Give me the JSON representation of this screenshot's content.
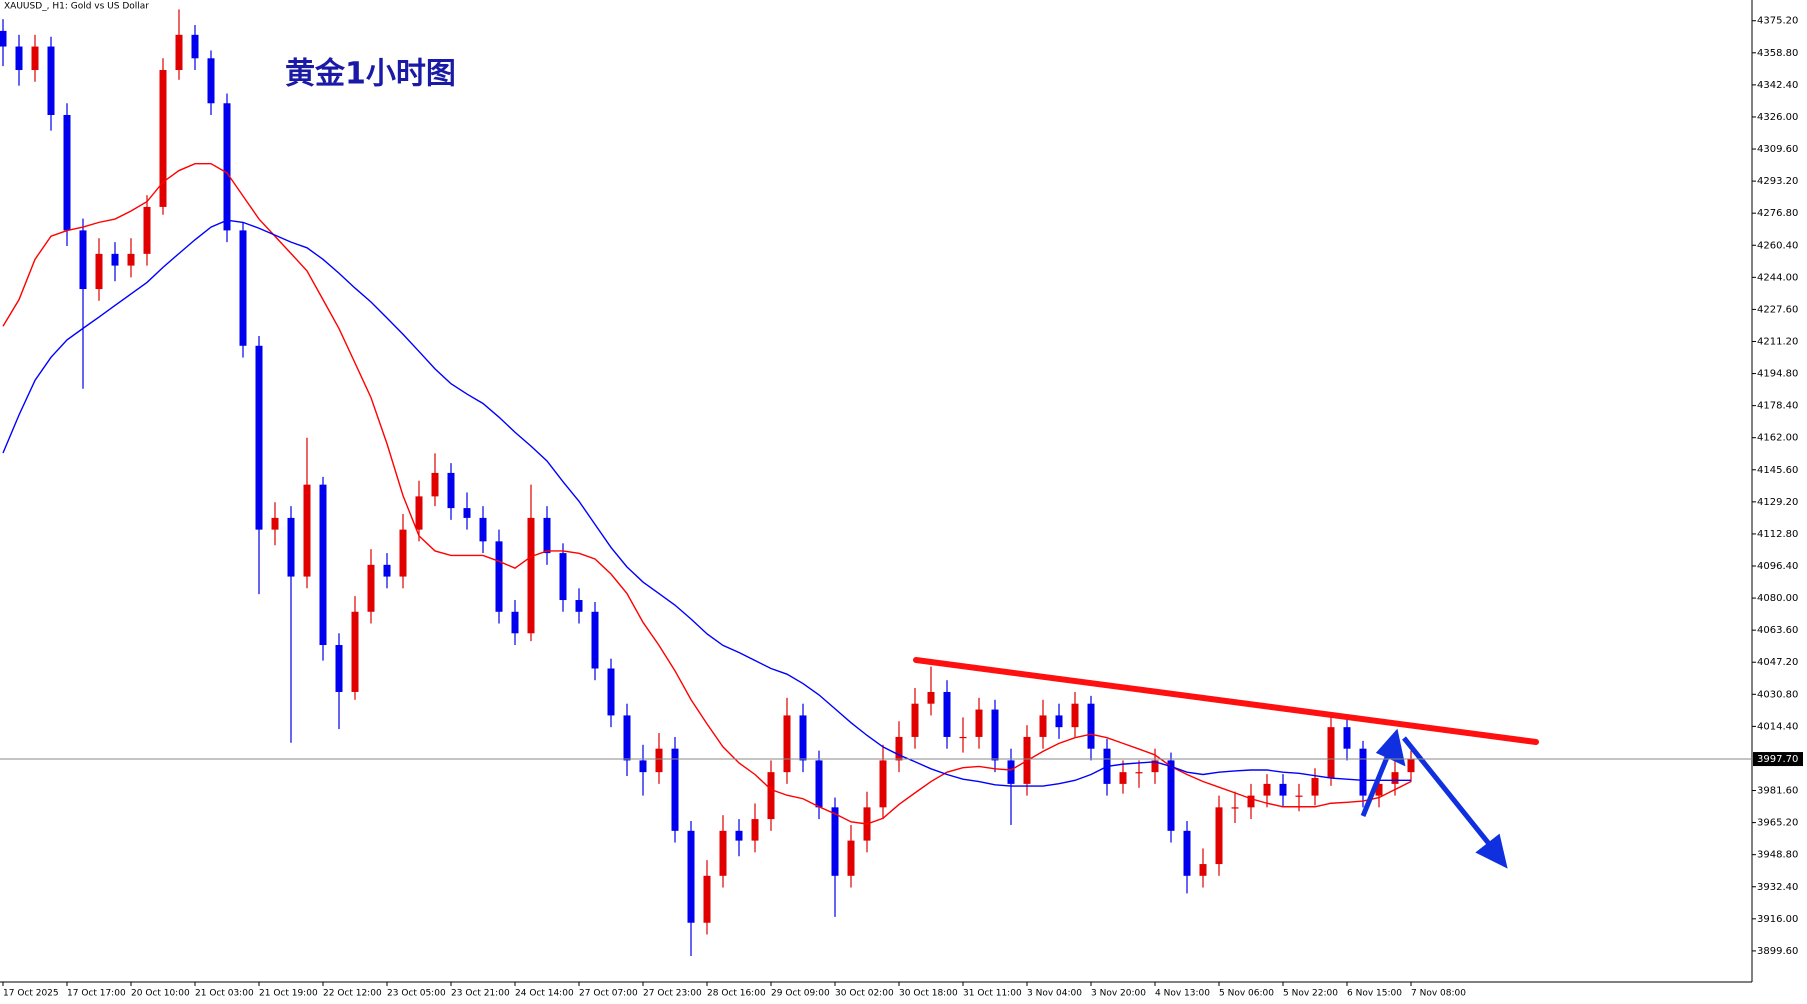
{
  "chart_data": {
    "type": "candlestick",
    "title": "XAUUSD_, H1:  Gold vs US Dollar",
    "annotation": "黄金1小时图",
    "categories": [
      "17 Oct 2025",
      null,
      null,
      null,
      "17 Oct 17:00",
      null,
      null,
      null,
      "20 Oct 10:00",
      null,
      null,
      null,
      "21 Oct 03:00",
      null,
      null,
      null,
      "21 Oct 19:00",
      null,
      null,
      null,
      "22 Oct 12:00",
      null,
      null,
      null,
      "23 Oct 05:00",
      null,
      null,
      null,
      "23 Oct 21:00",
      null,
      null,
      null,
      "24 Oct 14:00",
      null,
      null,
      null,
      "27 Oct 07:00",
      null,
      null,
      null,
      "27 Oct 23:00",
      null,
      null,
      null,
      "28 Oct 16:00",
      null,
      null,
      null,
      "29 Oct 09:00",
      null,
      null,
      null,
      "30 Oct 02:00",
      null,
      null,
      null,
      "30 Oct 18:00",
      null,
      null,
      null,
      "31 Oct 11:00",
      null,
      null,
      null,
      "3 Nov 04:00",
      null,
      null,
      null,
      "3 Nov 20:00",
      null,
      null,
      null,
      "4 Nov 13:00",
      null,
      null,
      null,
      "5 Nov 06:00",
      null,
      null,
      null,
      "5 Nov 22:00",
      null,
      null,
      null,
      "6 Nov 15:00",
      null,
      null,
      null,
      "7 Nov 08:00"
    ],
    "open": [
      4370,
      4362,
      4350,
      4362,
      4327,
      4268,
      4238,
      4256,
      4250,
      4256,
      4280,
      4350,
      4368,
      4356,
      4333,
      4268,
      4209,
      4115,
      4121,
      4091,
      4138,
      4056,
      4032,
      4073,
      4097,
      4091,
      4115,
      4132,
      4144,
      4126,
      4121,
      4109,
      4073,
      4062,
      4121,
      4103,
      4079,
      4073,
      4044,
      4020,
      3997,
      3991,
      4003,
      3961,
      3914,
      3938,
      3961,
      3956,
      3967,
      3991,
      4020,
      3997,
      3973,
      3938,
      3956,
      3973,
      3997,
      4009,
      4026,
      4032,
      4009,
      4009,
      4023,
      3997,
      3985,
      4009,
      4020,
      4014,
      4026,
      4003,
      3985,
      3991,
      3991,
      3997,
      3961,
      3938,
      3944,
      3973,
      3973,
      3979,
      3985,
      3979,
      3979,
      3988,
      4014,
      4003,
      3979,
      3985,
      3991
    ],
    "high": [
      4376,
      4368,
      4368,
      4367,
      4333,
      4274,
      4264,
      4262,
      4264,
      4286,
      4356,
      4381,
      4373,
      4360,
      4338,
      4272,
      4214,
      4129,
      4127,
      4162,
      4142,
      4062,
      4081,
      4105,
      4103,
      4123,
      4140,
      4154,
      4149,
      4134,
      4127,
      4115,
      4079,
      4138,
      4127,
      4108,
      4085,
      4078,
      4049,
      4026,
      4005,
      4011,
      4009,
      3966,
      3946,
      3969,
      3967,
      3975,
      3997,
      4029,
      4026,
      4002,
      3978,
      3964,
      3981,
      4005,
      4017,
      4034,
      4045,
      4038,
      4019,
      4029,
      4028,
      4003,
      4015,
      4028,
      4026,
      4032,
      4030,
      4008,
      3997,
      3997,
      4003,
      4001,
      3966,
      3952,
      3979,
      3981,
      3985,
      3990,
      3990,
      3985,
      3993,
      4020,
      4018,
      4007,
      3991,
      3997,
      4002
    ],
    "low": [
      4352,
      4342,
      4344,
      4319,
      4260,
      4187,
      4232,
      4242,
      4244,
      4250,
      4276,
      4345,
      4350,
      4327,
      4262,
      4203,
      4082,
      4107,
      4006,
      4085,
      4048,
      4013,
      4028,
      4067,
      4085,
      4085,
      4109,
      4127,
      4120,
      4115,
      4103,
      4067,
      4056,
      4058,
      4097,
      4073,
      4067,
      4038,
      4014,
      3989,
      3979,
      3985,
      3955,
      3897,
      3908,
      3932,
      3948,
      3950,
      3961,
      3985,
      3991,
      3967,
      3917,
      3932,
      3950,
      3967,
      3991,
      4003,
      4020,
      4003,
      4001,
      4003,
      3991,
      3964,
      3979,
      4003,
      4008,
      4009,
      3997,
      3979,
      3980,
      3983,
      3985,
      3955,
      3929,
      3932,
      3938,
      3965,
      3967,
      3973,
      3973,
      3971,
      3974,
      3984,
      3997,
      3973,
      3973,
      3979,
      3986
    ],
    "close": [
      4362,
      4350,
      4362,
      4327,
      4268,
      4238,
      4256,
      4250,
      4256,
      4280,
      4350,
      4368,
      4356,
      4333,
      4268,
      4209,
      4115,
      4121,
      4091,
      4138,
      4056,
      4032,
      4073,
      4097,
      4091,
      4115,
      4132,
      4144,
      4126,
      4121,
      4109,
      4073,
      4062,
      4121,
      4103,
      4079,
      4073,
      4044,
      4020,
      3997,
      3991,
      4003,
      3961,
      3914,
      3938,
      3961,
      3956,
      3967,
      3991,
      4020,
      3997,
      3973,
      3938,
      3956,
      3973,
      3997,
      4009,
      4026,
      4032,
      4009,
      4009,
      4023,
      3997,
      3985,
      4009,
      4020,
      4014,
      4026,
      4003,
      3985,
      3991,
      3991,
      3997,
      3961,
      3938,
      3944,
      3973,
      3973,
      3979,
      3985,
      3979,
      3979,
      3988,
      4014,
      4003,
      3979,
      3985,
      3991,
      3997.7
    ],
    "up_color": "#e00000",
    "down_color": "#0000ee",
    "overlays": [
      {
        "color": "#ff0000",
        "values": [
          4219.0,
          4232.6,
          4253.2,
          4265.0,
          4267.9,
          4269.7,
          4272.1,
          4273.8,
          4277.9,
          4282.7,
          4292.7,
          4298.6,
          4302.1,
          4302.1,
          4297.4,
          4285.6,
          4273.8,
          4265.0,
          4256.2,
          4247.3,
          4232.6,
          4217.8,
          4200.2,
          4182.5,
          4158.9,
          4132.4,
          4111.8,
          4104.1,
          4101.8,
          4101.8,
          4101.8,
          4098.8,
          4095.3,
          4101.2,
          4104.1,
          4104.1,
          4102.9,
          4100.0,
          4092.3,
          4082.3,
          4067.6,
          4055.8,
          4042.8,
          4028.1,
          4015.7,
          4003.9,
          3995.7,
          3989.8,
          3982.1,
          3979.2,
          3977.4,
          3973.3,
          3969.7,
          3965.6,
          3964.5,
          3967.4,
          3974.5,
          3980.4,
          3986.2,
          3991.0,
          3993.3,
          3993.9,
          3992.7,
          3992.1,
          3996.9,
          4001.6,
          4005.7,
          4008.6,
          4010.4,
          4008.6,
          4005.7,
          4002.8,
          3999.8,
          3993.9,
          3989.8,
          3986.2,
          3983.3,
          3980.4,
          3977.4,
          3975.1,
          3973.3,
          3973.3,
          3973.3,
          3975.1,
          3975.6,
          3976.2,
          3978.0,
          3982.1,
          3986.2
        ]
      },
      {
        "color": "#0000ff",
        "values": [
          4154.2,
          4173.6,
          4191.3,
          4203.1,
          4212.0,
          4217.9,
          4223.7,
          4229.6,
          4235.5,
          4241.4,
          4249.1,
          4256.2,
          4263.2,
          4269.7,
          4273.2,
          4272.1,
          4269.1,
          4265.6,
          4262.0,
          4259.1,
          4253.2,
          4246.1,
          4238.5,
          4231.4,
          4223.2,
          4214.9,
          4206.1,
          4197.2,
          4189.6,
          4184.3,
          4179.5,
          4172.5,
          4164.8,
          4157.7,
          4150.1,
          4139.5,
          4129.5,
          4117.7,
          4105.9,
          4095.9,
          4088.2,
          4082.3,
          4076.4,
          4069.3,
          4061.7,
          4055.8,
          4052.2,
          4048.1,
          4044.0,
          4041.1,
          4036.3,
          4030.5,
          4023.4,
          4016.3,
          4009.8,
          4003.9,
          3999.8,
          3996.3,
          3992.7,
          3989.8,
          3987.4,
          3986.2,
          3984.5,
          3983.9,
          3983.9,
          3983.9,
          3985.1,
          3986.8,
          3989.8,
          3993.9,
          3995.1,
          3995.7,
          3996.3,
          3993.9,
          3991.0,
          3989.8,
          3991.0,
          3991.6,
          3992.1,
          3992.1,
          3991.0,
          3990.4,
          3989.2,
          3988.0,
          3987.4,
          3986.8,
          3986.8,
          3986.8,
          3986.8
        ]
      }
    ],
    "current_price": {
      "value": 3997.7,
      "label": "3997.70"
    },
    "ylim": [
      3883.7,
      4385.8
    ],
    "yticks": [
      {
        "value": 4375.2,
        "label": "4375.20"
      },
      {
        "value": 4358.8,
        "label": "4358.80"
      },
      {
        "value": 4342.4,
        "label": "4342.40"
      },
      {
        "value": 4326,
        "label": "4326.00"
      },
      {
        "value": 4309.6,
        "label": "4309.60"
      },
      {
        "value": 4293.2,
        "label": "4293.20"
      },
      {
        "value": 4276.8,
        "label": "4276.80"
      },
      {
        "value": 4260.4,
        "label": "4260.40"
      },
      {
        "value": 4244,
        "label": "4244.00"
      },
      {
        "value": 4227.6,
        "label": "4227.60"
      },
      {
        "value": 4211.2,
        "label": "4211.20"
      },
      {
        "value": 4194.8,
        "label": "4194.80"
      },
      {
        "value": 4178.4,
        "label": "4178.40"
      },
      {
        "value": 4162,
        "label": "4162.00"
      },
      {
        "value": 4145.6,
        "label": "4145.60"
      },
      {
        "value": 4129.2,
        "label": "4129.20"
      },
      {
        "value": 4112.8,
        "label": "4112.80"
      },
      {
        "value": 4096.4,
        "label": "4096.40"
      },
      {
        "value": 4080,
        "label": "4080.00"
      },
      {
        "value": 4063.6,
        "label": "4063.60"
      },
      {
        "value": 4047.2,
        "label": "4047.20"
      },
      {
        "value": 4030.8,
        "label": "4030.80"
      },
      {
        "value": 4014.4,
        "label": "4014.40"
      },
      {
        "value": 3981.6,
        "label": "3981.60"
      },
      {
        "value": 3965.2,
        "label": "3965.20"
      },
      {
        "value": 3948.8,
        "label": "3948.80"
      },
      {
        "value": 3932.4,
        "label": "3932.40"
      },
      {
        "value": 3916,
        "label": "3916.00"
      },
      {
        "value": 3899.6,
        "label": "3899.60"
      }
    ],
    "grid": false
  }
}
